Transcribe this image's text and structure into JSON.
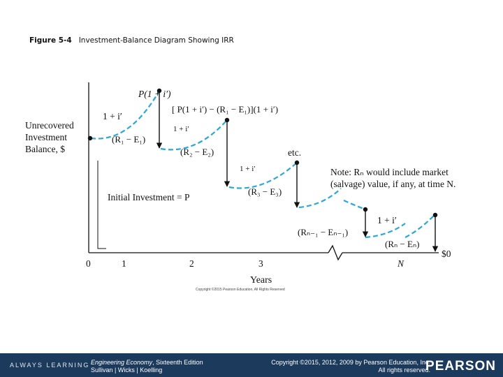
{
  "caption": {
    "figure_number": "Figure 5-4",
    "title": "Investment-Balance Diagram Showing IRR"
  },
  "diagram": {
    "y_axis_label_lines": [
      "Unrecovered",
      "Investment",
      "Balance, $"
    ],
    "x_axis_title": "Years",
    "x_ticks": [
      "0",
      "1",
      "2",
      "3",
      "N"
    ],
    "end_label": "$0",
    "initial_investment": "Initial Investment = P",
    "labels": {
      "p_growth": "P(1 + i′)",
      "growth_1": "1 + i′",
      "e1": "(R₁ − E₁)",
      "bracket": "[ P(1 + i′) − (R₁ − E₁)](1 + i′)",
      "growth_2": "1 + i′",
      "e2": "(R₂ − E₂)",
      "etc": "etc.",
      "growth_3": "1 + i′",
      "e3": "(R₃ − E₃)",
      "note_line1": "Note: Rₙ would include market",
      "note_line2": "(salvage) value, if any, at time N.",
      "growth_n": "1 + i′",
      "en1": "(Rₙ₋₁ − Eₙ₋₁)",
      "en": "(Rₙ − Eₙ)"
    },
    "small_copyright": "Copyright ©2015 Pearson Education, All Rights Reserved",
    "colors": {
      "curve": "#2aa8d8",
      "ink": "#111111"
    }
  },
  "footer": {
    "always_learning": "ALWAYS LEARNING",
    "book_title": "Engineering Economy",
    "book_edition": ", Sixteenth Edition",
    "authors": "Sullivan | Wicks | Koelling",
    "copyright_line1": "Copyright ©2015, 2012, 2009 by Pearson Education, Inc.",
    "copyright_line2": "All rights reserved.",
    "brand": "PEARSON",
    "bar_color": "#1b3a5c"
  }
}
